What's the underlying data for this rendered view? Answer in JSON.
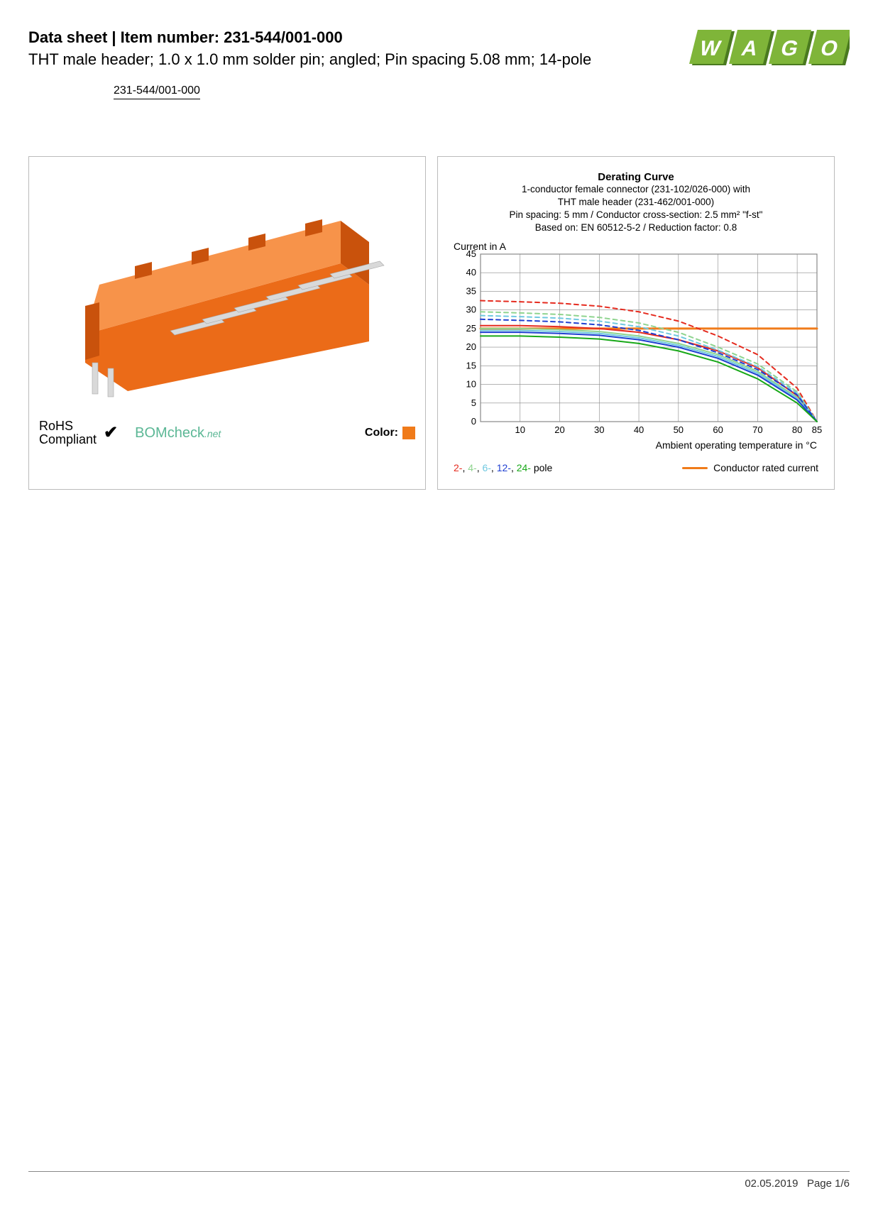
{
  "header": {
    "title_prefix": "Data sheet",
    "title_sep": "  |  ",
    "title_label": "Item number: ",
    "item_number": "231-544/001-000",
    "subtitle": "THT male header; 1.0 x 1.0 mm solder pin; angled; Pin spacing 5.08 mm; 14-pole",
    "link_text": "231-544/001-000",
    "logo_text": "WAGO",
    "logo_fill": "#7fb539",
    "logo_shadow": "#4a7a1f"
  },
  "product_panel": {
    "rohs_line1": "RoHS",
    "rohs_line2": "Compliant",
    "check_glyph": "✔",
    "bomcheck_main": "BOMcheck",
    "bomcheck_suffix": ".net",
    "color_label": "Color:",
    "color_swatch": "#f07b1a",
    "connector_body": "#eb6b18",
    "connector_body_light": "#f7934a",
    "connector_body_dark": "#c9520c",
    "pin_color": "#d9d9d9",
    "pin_shadow": "#a8a8a8"
  },
  "chart": {
    "title": "Derating Curve",
    "meta1": "1-conductor female connector (231-102/026-000) with",
    "meta2": "THT male header (231-462/001-000)",
    "meta3": "Pin spacing: 5 mm / Conductor cross-section: 2.5 mm² \"f-st\"",
    "meta4": "Based on: EN 60512-5-2 / Reduction factor: 0.8",
    "y_label": "Current in A",
    "x_label": "Ambient operating temperature in °C",
    "type": "line",
    "xlim": [
      0,
      85
    ],
    "ylim": [
      0,
      45
    ],
    "xticks": [
      10,
      20,
      30,
      40,
      50,
      60,
      70,
      80,
      85
    ],
    "yticks": [
      0,
      5,
      10,
      15,
      20,
      25,
      30,
      35,
      40,
      45
    ],
    "grid_color": "#888888",
    "background_color": "#ffffff",
    "axis_fontsize": 13,
    "label_fontsize": 14,
    "rated_current": {
      "color": "#f07b1a",
      "stroke_width": 3,
      "points": [
        [
          0,
          25
        ],
        [
          10,
          25
        ],
        [
          85,
          25
        ]
      ],
      "label": "Conductor rated current"
    },
    "series": [
      {
        "name": "2-",
        "color": "#e52b1f",
        "stroke_width": 2,
        "solid": [
          [
            0,
            25.8
          ],
          [
            10,
            25.8
          ],
          [
            20,
            25.5
          ],
          [
            30,
            25
          ],
          [
            40,
            24
          ],
          [
            50,
            22
          ],
          [
            60,
            19
          ],
          [
            70,
            14.5
          ],
          [
            80,
            7
          ],
          [
            85,
            0
          ]
        ],
        "dashed": [
          [
            0,
            32.5
          ],
          [
            10,
            32.2
          ],
          [
            20,
            31.8
          ],
          [
            30,
            31
          ],
          [
            40,
            29.5
          ],
          [
            50,
            27
          ],
          [
            60,
            23
          ],
          [
            70,
            18
          ],
          [
            80,
            9
          ],
          [
            85,
            0
          ]
        ]
      },
      {
        "name": "4-",
        "color": "#8fd48f",
        "stroke_width": 2,
        "solid": [
          [
            0,
            25
          ],
          [
            10,
            25
          ],
          [
            20,
            24.7
          ],
          [
            30,
            24.2
          ],
          [
            40,
            23
          ],
          [
            50,
            21
          ],
          [
            60,
            18
          ],
          [
            70,
            13.5
          ],
          [
            80,
            6.5
          ],
          [
            85,
            0
          ]
        ],
        "dashed": [
          [
            0,
            29.5
          ],
          [
            10,
            29.2
          ],
          [
            20,
            28.8
          ],
          [
            30,
            28
          ],
          [
            40,
            26.5
          ],
          [
            50,
            24
          ],
          [
            60,
            20
          ],
          [
            70,
            15.5
          ],
          [
            80,
            8
          ],
          [
            85,
            0
          ]
        ]
      },
      {
        "name": "6-",
        "color": "#6fc8e0",
        "stroke_width": 2,
        "solid": [
          [
            0,
            24.5
          ],
          [
            10,
            24.5
          ],
          [
            20,
            24.2
          ],
          [
            30,
            23.7
          ],
          [
            40,
            22.5
          ],
          [
            50,
            20.5
          ],
          [
            60,
            17.5
          ],
          [
            70,
            13
          ],
          [
            80,
            6.2
          ],
          [
            85,
            0
          ]
        ],
        "dashed": [
          [
            0,
            28.5
          ],
          [
            10,
            28.2
          ],
          [
            20,
            27.8
          ],
          [
            30,
            27
          ],
          [
            40,
            25.5
          ],
          [
            50,
            23
          ],
          [
            60,
            19.2
          ],
          [
            70,
            14.8
          ],
          [
            80,
            7.6
          ],
          [
            85,
            0
          ]
        ]
      },
      {
        "name": "12-",
        "color": "#1f3fd1",
        "stroke_width": 2,
        "solid": [
          [
            0,
            24
          ],
          [
            10,
            24
          ],
          [
            20,
            23.7
          ],
          [
            30,
            23.2
          ],
          [
            40,
            22
          ],
          [
            50,
            20
          ],
          [
            60,
            17
          ],
          [
            70,
            12.5
          ],
          [
            80,
            5.8
          ],
          [
            85,
            0
          ]
        ],
        "dashed": [
          [
            0,
            27.5
          ],
          [
            10,
            27.2
          ],
          [
            20,
            26.8
          ],
          [
            30,
            26
          ],
          [
            40,
            24.5
          ],
          [
            50,
            22
          ],
          [
            60,
            18.5
          ],
          [
            70,
            14
          ],
          [
            80,
            7.2
          ],
          [
            85,
            0
          ]
        ]
      },
      {
        "name": "24-",
        "color": "#18a818",
        "stroke_width": 2,
        "solid": [
          [
            0,
            23
          ],
          [
            10,
            23
          ],
          [
            20,
            22.7
          ],
          [
            30,
            22.2
          ],
          [
            40,
            21
          ],
          [
            50,
            19
          ],
          [
            60,
            16
          ],
          [
            70,
            11.5
          ],
          [
            80,
            5
          ],
          [
            85,
            0
          ]
        ],
        "dashed": []
      }
    ],
    "legend_series_suffix": " pole",
    "legend_sep": ", "
  },
  "footer": {
    "date": "02.05.2019",
    "page_label": "Page 1/6"
  }
}
